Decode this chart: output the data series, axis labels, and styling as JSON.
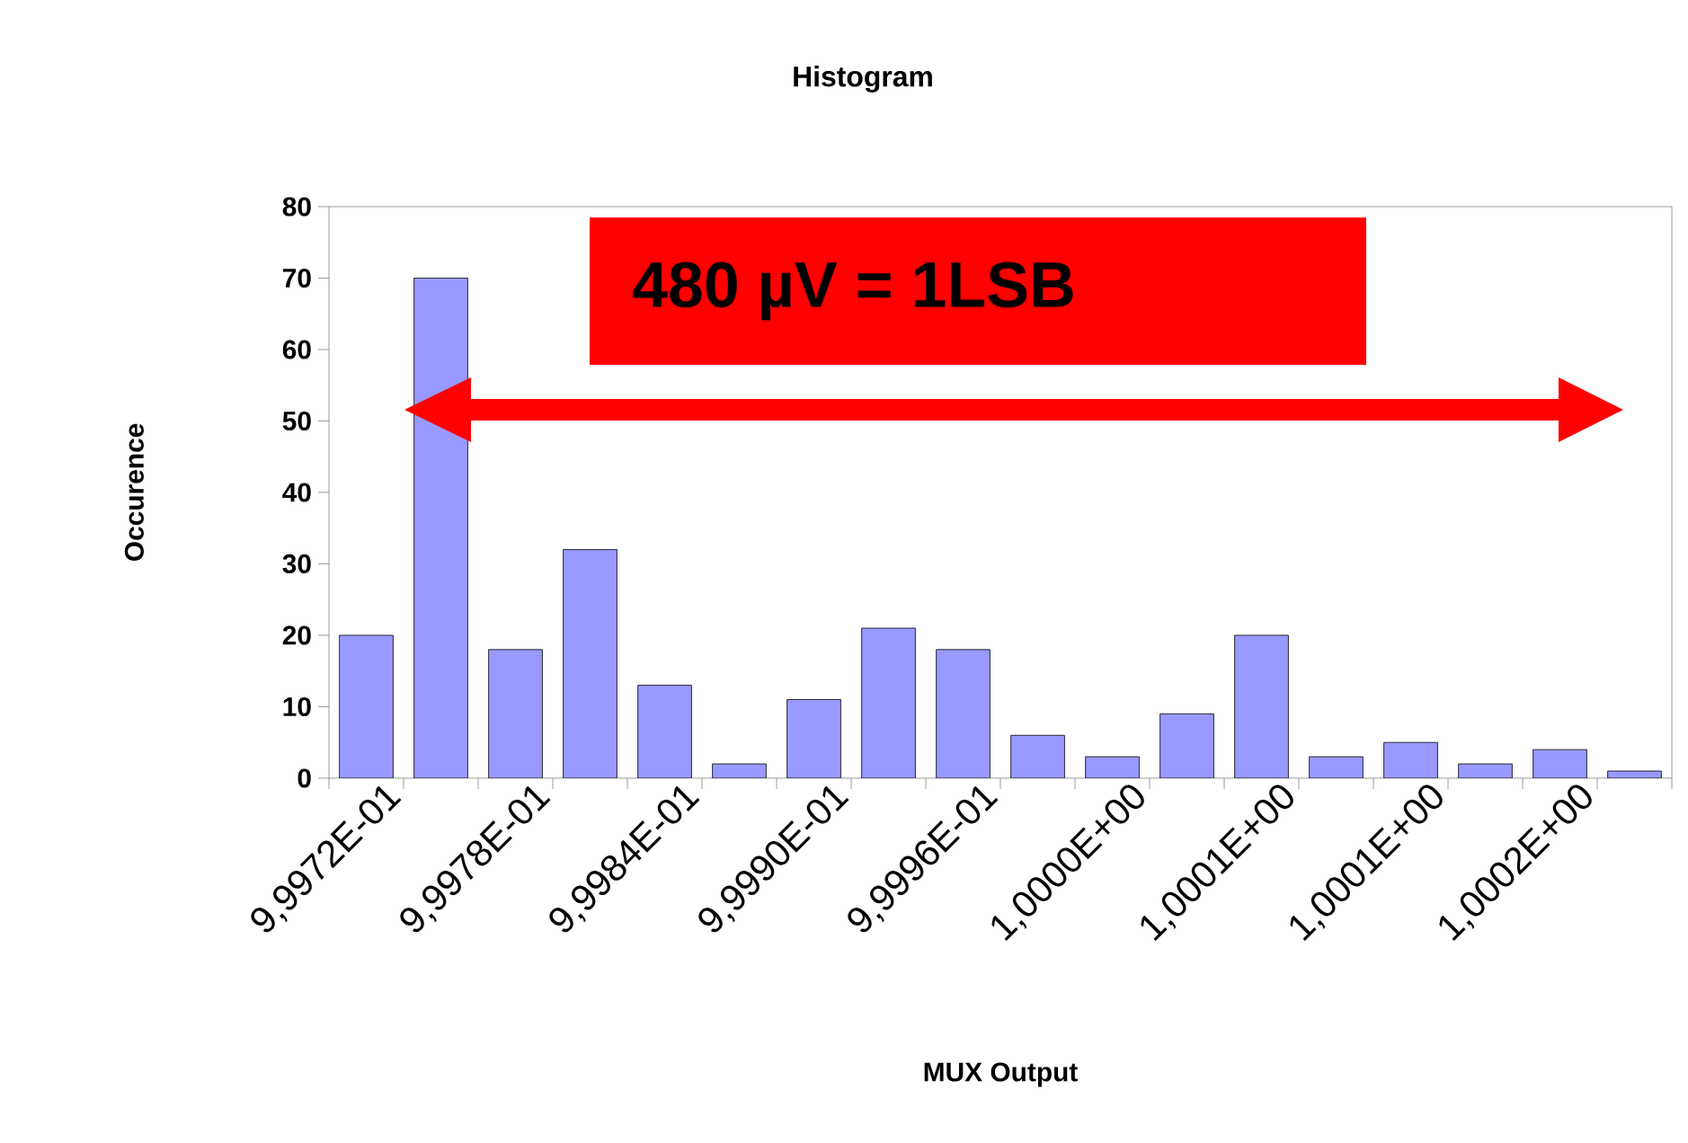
{
  "chart_data": {
    "type": "bar",
    "title": "Histogram",
    "xlabel": "MUX Output",
    "ylabel": "Occurence",
    "categories": [
      "9,9972E-01",
      null,
      "9,9978E-01",
      null,
      "9,9984E-01",
      null,
      "9,9990E-01",
      null,
      "9,9996E-01",
      null,
      "1,0000E+00",
      null,
      "1,0001E+00",
      null,
      "1,0001E+00",
      null,
      "1,0002E+00",
      null
    ],
    "values": [
      20,
      70,
      18,
      32,
      13,
      2,
      11,
      21,
      18,
      6,
      3,
      9,
      20,
      3,
      5,
      2,
      4,
      1
    ],
    "color": "#9999ff",
    "ylim": [
      0,
      80
    ],
    "yticks": [
      0,
      10,
      20,
      30,
      40,
      50,
      60,
      70,
      80
    ],
    "annotations": [
      "480 µV = 1LSB"
    ]
  }
}
